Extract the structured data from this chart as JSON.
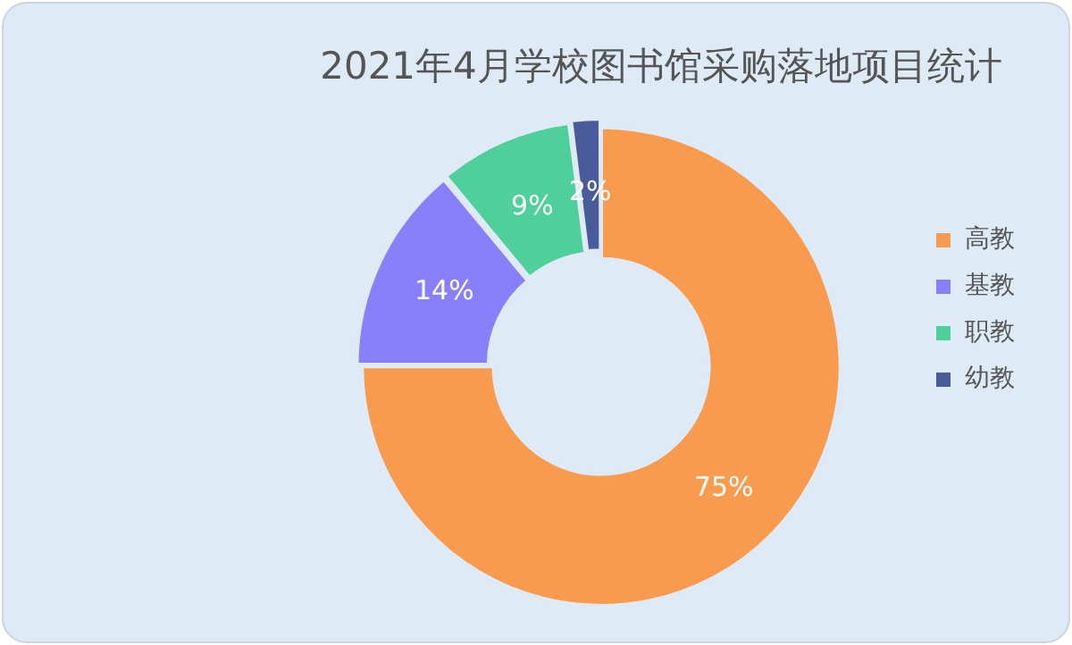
{
  "chart_data": {
    "type": "donut",
    "title": "2021年4月学校图书馆采购落地项目统计",
    "categories": [
      "高教",
      "基教",
      "职教",
      "幼教"
    ],
    "values": [
      75,
      14,
      9,
      2
    ],
    "colors": [
      "#f99b4e",
      "#8a7ffa",
      "#4fcf9c",
      "#4a5b9c"
    ],
    "value_labels": [
      "75%",
      "14%",
      "9%",
      "2%"
    ],
    "legend": "right"
  }
}
